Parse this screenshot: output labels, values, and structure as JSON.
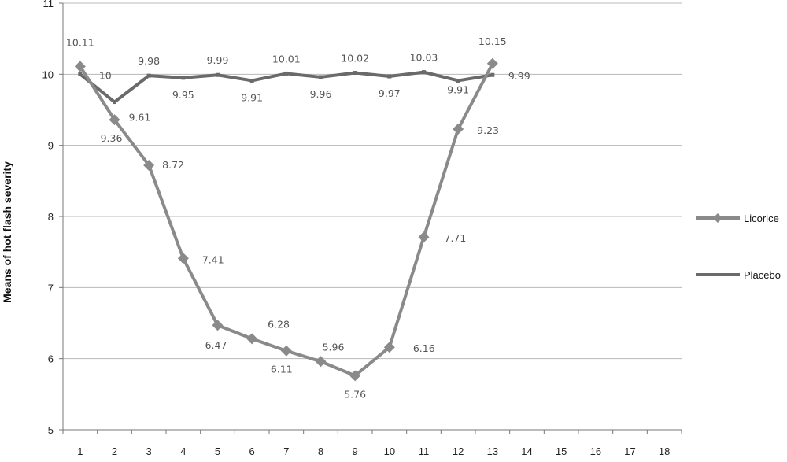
{
  "chart_data": {
    "type": "line",
    "title": "",
    "xlabel": "",
    "ylabel": "Means of hot flash severity",
    "x": [
      1,
      2,
      3,
      4,
      5,
      6,
      7,
      8,
      9,
      10,
      11,
      12,
      13
    ],
    "x_ticks": [
      "1",
      "2",
      "3",
      "4",
      "5",
      "6",
      "7",
      "8",
      "9",
      "10",
      "11",
      "12",
      "13",
      "14",
      "15",
      "16",
      "17",
      "18"
    ],
    "y_ticks": [
      "5",
      "6",
      "7",
      "8",
      "9",
      "10",
      "11"
    ],
    "xlim": [
      1,
      18
    ],
    "ylim": [
      5,
      11
    ],
    "grid": "horizontal",
    "legend_position": "right",
    "series": [
      {
        "name": "Licorice",
        "marker": "diamond",
        "color": "#8a8a8a",
        "values": [
          10.11,
          9.36,
          8.72,
          7.41,
          6.47,
          6.28,
          6.11,
          5.96,
          5.76,
          6.16,
          7.71,
          9.23,
          10.15
        ],
        "labels": [
          "10.11",
          "9.36",
          "8.72",
          "7.41",
          "6.47",
          "6.28",
          "6.11",
          "5.96",
          "5.76",
          "6.16",
          "7.71",
          "9.23",
          "10.15"
        ]
      },
      {
        "name": "Placebo",
        "marker": "square",
        "color": "#6a6a6a",
        "values": [
          10,
          9.61,
          9.98,
          9.95,
          9.99,
          9.91,
          10.01,
          9.96,
          10.02,
          9.97,
          10.03,
          9.91,
          9.99
        ],
        "labels": [
          "10",
          "9.61",
          "9.98",
          "9.95",
          "9.99",
          "9.91",
          "10.01",
          "9.96",
          "10.02",
          "9.97",
          "10.03",
          "9.91",
          "9.99"
        ]
      }
    ]
  }
}
